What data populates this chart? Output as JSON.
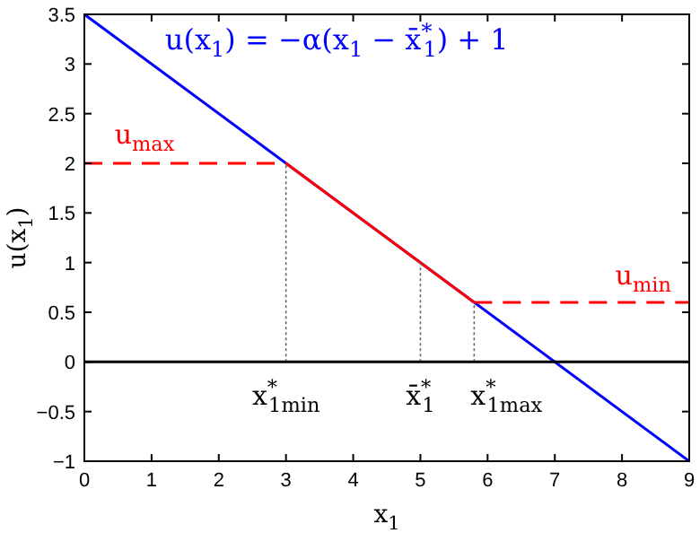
{
  "chart_data": {
    "type": "line",
    "title": "u(x$_{1}$) = −α(x$_{1}$ − x̄$^{*}$$_{1}$) + 1",
    "xlabel": "x$_{1}$",
    "ylabel": "u(x$_{1}$)",
    "series": [
      {
        "type": "line",
        "color": "#0000ff",
        "line_style": "solid",
        "x": [
          0,
          9
        ],
        "values": [
          3.5,
          -1
        ]
      },
      {
        "type": "line",
        "color": "#ff0000",
        "line_style": "dashed",
        "x": [
          0,
          3
        ],
        "values": [
          2,
          2
        ]
      },
      {
        "type": "line",
        "color": "#ff0000",
        "line_style": "solid",
        "x": [
          3,
          5.8
        ],
        "values": [
          2,
          0.6
        ]
      },
      {
        "type": "line",
        "color": "#ff0000",
        "line_style": "dashed",
        "x": [
          5.8,
          9
        ],
        "values": [
          0.6,
          0.6
        ]
      },
      {
        "type": "line",
        "color": "#666666",
        "line_style": "dotted",
        "x": [
          3,
          3
        ],
        "values": [
          0,
          2
        ]
      },
      {
        "type": "line",
        "color": "#666666",
        "line_style": "dotted",
        "x": [
          5,
          5
        ],
        "values": [
          0,
          1
        ]
      },
      {
        "type": "line",
        "color": "#666666",
        "line_style": "dotted",
        "x": [
          5.8,
          5.8
        ],
        "values": [
          0,
          0.6
        ]
      }
    ],
    "ref_lines": [
      {
        "axis": "y",
        "value": 0,
        "color": "#000000",
        "line_style": "solid"
      }
    ],
    "annotations": [
      "u$_{max}$",
      "u$_{min}$",
      {
        "text": "x$^{*}$$_{1min}$",
        "x": 3,
        "y": 0
      },
      {
        "text": "x̄$^{*}$$_{1}$",
        "x": 5,
        "y": 0
      },
      {
        "text": "x$^{*}$$_{1max}$",
        "x": 5.8,
        "y": 0
      }
    ],
    "xlim": [
      0,
      9
    ],
    "xticks": [
      0,
      1,
      2,
      3,
      4,
      5,
      6,
      7,
      8,
      9
    ],
    "ylim": [
      -1,
      3.5
    ],
    "yticks": [
      {
        "value": -1,
        "label": "−1"
      },
      {
        "value": -0.5,
        "label": "−0.5"
      },
      0,
      0.5,
      1,
      1.5,
      2,
      2.5,
      3,
      3.5
    ],
    "grid": false
  }
}
